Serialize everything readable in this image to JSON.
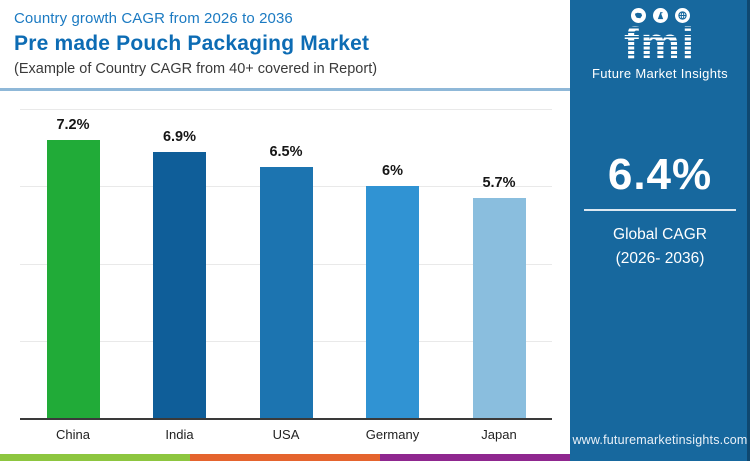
{
  "header": {
    "eyebrow": "Country growth CAGR from 2026 to 2036",
    "title": "Pre made Pouch Packaging Market",
    "subtitle": "(Example of Country CAGR from 40+ covered in Report)"
  },
  "chart_data": {
    "type": "bar",
    "categories": [
      "China",
      "India",
      "USA",
      "Germany",
      "Japan"
    ],
    "values": [
      7.2,
      6.9,
      6.5,
      6.0,
      5.7
    ],
    "value_labels": [
      "7.2%",
      "6.9%",
      "6.5%",
      "6%",
      "5.7%"
    ],
    "bar_colors": [
      "#21ab38",
      "#0f5e99",
      "#1c74b0",
      "#3093d3",
      "#8abede"
    ],
    "title": "Pre made Pouch Packaging Market",
    "xlabel": "",
    "ylabel": "",
    "ylim": [
      0,
      8
    ],
    "gridline_values": [
      2,
      4,
      6,
      8
    ],
    "grid": true,
    "legend": false
  },
  "sidebar": {
    "bg_color": "#17689e",
    "brand_word": "fmi",
    "brand_name": "Future Market Insights",
    "brand_icons": [
      "map-icon",
      "flag-mountain-icon",
      "globe-icon"
    ],
    "stat_value": "6.4%",
    "stat_label_line1": "Global CAGR",
    "stat_label_line2": "(2026- 2036)",
    "website": "www.futuremarketinsights.com"
  },
  "footer_strip": {
    "colors": [
      "#8dc63f",
      "#e5642e",
      "#8f278f"
    ]
  }
}
